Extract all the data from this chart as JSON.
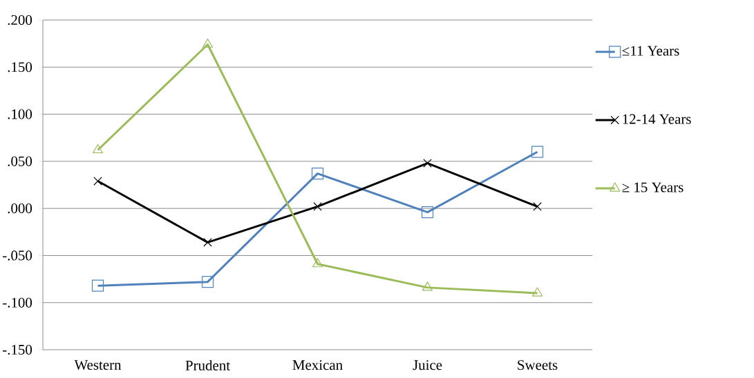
{
  "chart_data": {
    "type": "line",
    "categories": [
      "Western",
      "Prudent",
      "Mexican",
      "Juice",
      "Sweets"
    ],
    "series": [
      {
        "name": "≤11 Years",
        "color": "#4f81bd",
        "marker": "square",
        "values": [
          -0.082,
          -0.078,
          0.037,
          -0.004,
          0.06
        ]
      },
      {
        "name": "12-14 Years",
        "color": "#000000",
        "marker": "cross",
        "values": [
          0.029,
          -0.036,
          0.002,
          0.048,
          0.002
        ]
      },
      {
        "name": "≥ 15 Years",
        "color": "#9bbb59",
        "marker": "triangle",
        "values": [
          0.062,
          0.174,
          -0.059,
          -0.084,
          -0.09
        ]
      }
    ],
    "ylim": [
      -0.15,
      0.2
    ],
    "yticks": [
      {
        "value": -0.15,
        "label": "-.150"
      },
      {
        "value": -0.1,
        "label": "-.100"
      },
      {
        "value": -0.05,
        "label": "-.050"
      },
      {
        "value": 0,
        "label": ".000"
      },
      {
        "value": 0.05,
        "label": ".050"
      },
      {
        "value": 0.1,
        "label": ".100"
      },
      {
        "value": 0.15,
        "label": ".150"
      },
      {
        "value": 0.2,
        "label": ".200"
      }
    ],
    "grid": "y",
    "legend": "right",
    "line_style": "solid"
  }
}
